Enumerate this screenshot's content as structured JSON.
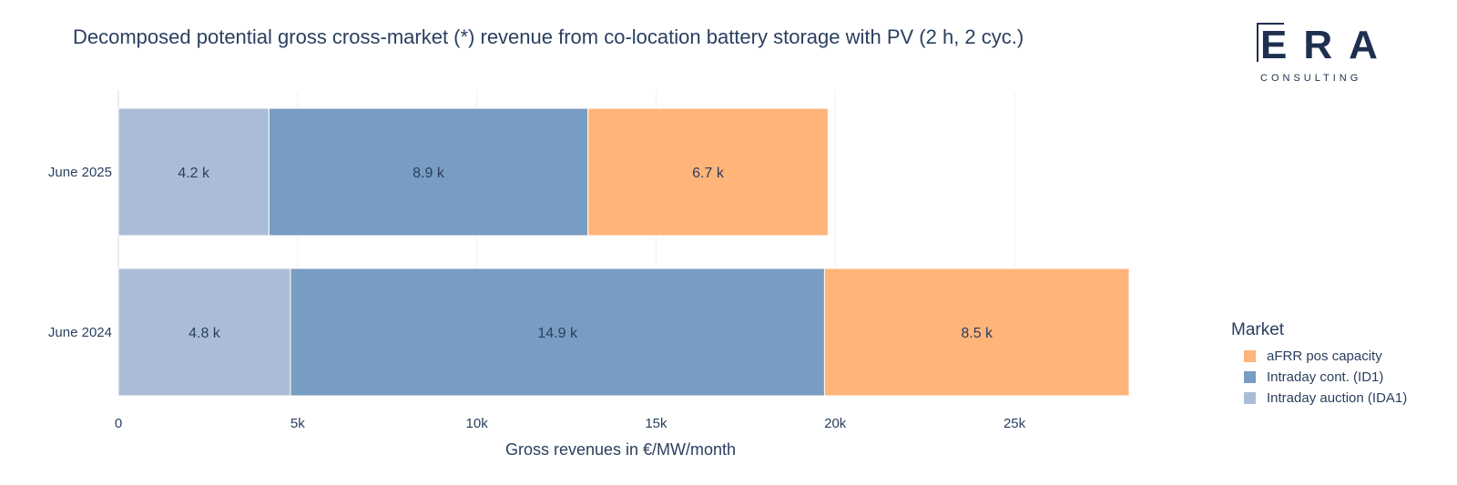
{
  "title": "Decomposed potential gross cross-market (*) revenue from co-location battery storage with PV (2 h, 2 cyc.)",
  "logo": {
    "letters": "ERA",
    "sub": "CONSULTING"
  },
  "chart_data": {
    "type": "bar",
    "orientation": "horizontal",
    "stacked": true,
    "categories": [
      "June 2024",
      "June 2025"
    ],
    "series": [
      {
        "name": "Intraday auction (IDA1)",
        "color": "#abbcd9",
        "values": [
          4.8,
          4.2
        ],
        "labels": [
          "4.8 k",
          "4.2 k"
        ]
      },
      {
        "name": "Intraday cont. (ID1)",
        "color": "#789cc2",
        "values": [
          14.9,
          8.9
        ],
        "labels": [
          "14.9 k",
          "8.9 k"
        ]
      },
      {
        "name": "aFRR pos capacity",
        "color": "#ffb47a",
        "values": [
          8.5,
          6.7
        ],
        "labels": [
          "8.5 k",
          "6.7 k"
        ]
      }
    ],
    "xlabel": "Gross revenues in €/MW/month",
    "xlim": [
      0,
      30
    ],
    "xticks": [
      0,
      5,
      10,
      15,
      20,
      25
    ],
    "xtick_labels": [
      "0",
      "5k",
      "10k",
      "15k",
      "20k",
      "25k"
    ],
    "grid": true,
    "legend": {
      "title": "Market",
      "placement": "right",
      "items": [
        {
          "name": "aFRR pos capacity",
          "color": "#ffb47a"
        },
        {
          "name": "Intraday cont. (ID1)",
          "color": "#789cc2"
        },
        {
          "name": "Intraday auction (IDA1)",
          "color": "#abbcd9"
        }
      ]
    }
  }
}
